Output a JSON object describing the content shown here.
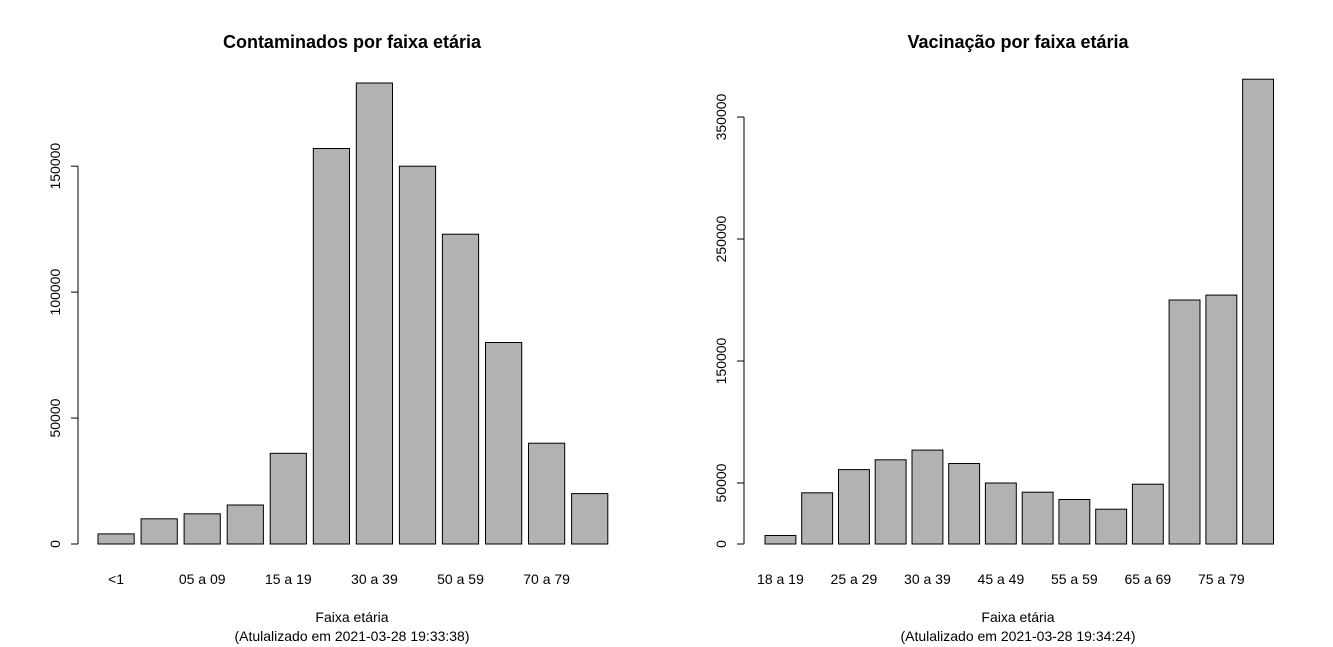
{
  "chart_data": [
    {
      "type": "bar",
      "title": "Contaminados por faixa etária",
      "xlabel": "Faixa etária",
      "subtitle": "(Atulalizado em 2021-03-28 19:33:38)",
      "ylim": [
        0,
        185000
      ],
      "yticks": [
        0,
        50000,
        100000,
        150000
      ],
      "ytick_labels": [
        "0",
        "50000",
        "100000",
        "150000"
      ],
      "categories": [
        "<1",
        "",
        "05 a 09",
        "",
        "15 a 19",
        "",
        "30 a 39",
        "",
        "50 a 59",
        "",
        "70 a 79",
        ""
      ],
      "values": [
        4000,
        10000,
        12000,
        15500,
        36000,
        157000,
        183000,
        150000,
        123000,
        80000,
        40000,
        20000
      ],
      "colors": {
        "bar": "#b2b2b2",
        "stroke": "#000000"
      }
    },
    {
      "type": "bar",
      "title": "Vacinação por faixa etária",
      "xlabel": "Faixa etária",
      "subtitle": "(Atulalizado em 2021-03-28 19:34:24)",
      "ylim": [
        0,
        382000
      ],
      "yticks": [
        0,
        50000,
        150000,
        250000,
        350000
      ],
      "ytick_labels": [
        "0",
        "50000",
        "150000",
        "250000",
        "350000"
      ],
      "categories": [
        "18 a 19",
        "",
        "25 a 29",
        "",
        "30 a 39",
        "",
        "45 a 49",
        "",
        "55 a 59",
        "",
        "65 a 69",
        "",
        "75 a 79",
        ""
      ],
      "values": [
        7000,
        42000,
        61000,
        69000,
        77000,
        66000,
        50000,
        42500,
        36500,
        28500,
        49000,
        200000,
        204000,
        381000
      ],
      "colors": {
        "bar": "#b2b2b2",
        "stroke": "#000000"
      }
    }
  ]
}
